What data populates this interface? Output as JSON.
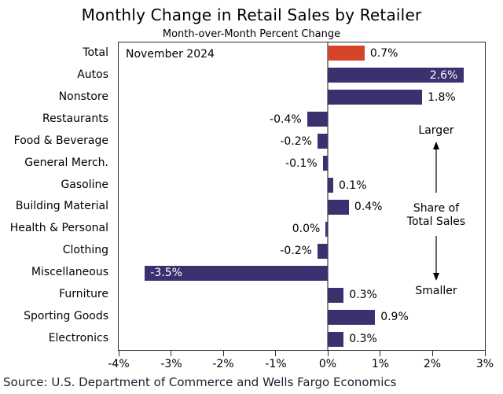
{
  "header": {
    "title": "Monthly Change in Retail Sales by Retailer",
    "subtitle": "Month-over-Month Percent Change"
  },
  "plot": {
    "date_label": "November 2024",
    "share_annotation": {
      "top_label": "Larger",
      "line1": "Share of",
      "line2": "Total Sales",
      "bottom_label": "Smaller"
    }
  },
  "footer": {
    "source": "Source: U.S. Department of Commerce and Wells Fargo Economics"
  },
  "colors": {
    "bar_primary": "#3b316e",
    "bar_highlight": "#d64326",
    "zero_line": "#8a8a8a",
    "frame": "#2e2e2e",
    "inside_label_text": "#ffffff"
  },
  "chart_data": {
    "type": "bar",
    "orientation": "horizontal",
    "title": "Monthly Change in Retail Sales by Retailer",
    "subtitle": "Month-over-Month Percent Change",
    "annotation": "November 2024",
    "xlim": [
      -4,
      3
    ],
    "x_ticks": [
      "-4%",
      "-3%",
      "-2%",
      "-1%",
      "0%",
      "1%",
      "2%",
      "3%"
    ],
    "unit": "percent",
    "grid": "off",
    "legend": "none",
    "points": [
      {
        "category": "Total",
        "value": 0.7,
        "label": "0.7%",
        "highlight": true,
        "label_placement": "outside"
      },
      {
        "category": "Autos",
        "value": 2.6,
        "label": "2.6%",
        "highlight": false,
        "label_placement": "inside"
      },
      {
        "category": "Nonstore",
        "value": 1.8,
        "label": "1.8%",
        "highlight": false,
        "label_placement": "outside"
      },
      {
        "category": "Restaurants",
        "value": -0.4,
        "label": "-0.4%",
        "highlight": false,
        "label_placement": "outside"
      },
      {
        "category": "Food & Beverage",
        "value": -0.2,
        "label": "-0.2%",
        "highlight": false,
        "label_placement": "outside"
      },
      {
        "category": "General Merch.",
        "value": -0.1,
        "label": "-0.1%",
        "highlight": false,
        "label_placement": "outside"
      },
      {
        "category": "Gasoline",
        "value": 0.1,
        "label": "0.1%",
        "highlight": false,
        "label_placement": "outside"
      },
      {
        "category": "Building Material",
        "value": 0.4,
        "label": "0.4%",
        "highlight": false,
        "label_placement": "outside"
      },
      {
        "category": "Health & Personal",
        "value": 0.0,
        "label": "0.0%",
        "highlight": false,
        "label_placement": "outside",
        "zero_bar_side": "negative"
      },
      {
        "category": "Clothing",
        "value": -0.2,
        "label": "-0.2%",
        "highlight": false,
        "label_placement": "outside"
      },
      {
        "category": "Miscellaneous",
        "value": -3.5,
        "label": "-3.5%",
        "highlight": false,
        "label_placement": "inside"
      },
      {
        "category": "Furniture",
        "value": 0.3,
        "label": "0.3%",
        "highlight": false,
        "label_placement": "outside"
      },
      {
        "category": "Sporting Goods",
        "value": 0.9,
        "label": "0.9%",
        "highlight": false,
        "label_placement": "outside"
      },
      {
        "category": "Electronics",
        "value": 0.3,
        "label": "0.3%",
        "highlight": false,
        "label_placement": "outside"
      }
    ]
  }
}
